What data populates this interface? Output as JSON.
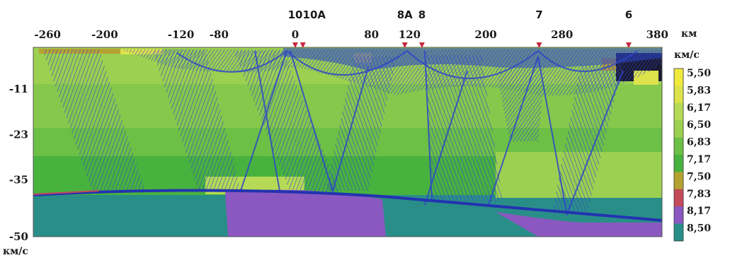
{
  "chart_data": {
    "type": "heatmap",
    "title": "",
    "x_unit": "км",
    "y_unit": "км/с",
    "colorbar_unit": "км/с",
    "xlim": [
      -275,
      385
    ],
    "ylim": [
      -50,
      0
    ],
    "x_ticks": [
      {
        "label": "-260",
        "value": -260
      },
      {
        "label": "-200",
        "value": -200
      },
      {
        "label": "-120",
        "value": -120
      },
      {
        "label": "-80",
        "value": -80
      },
      {
        "label": "0",
        "value": 0
      },
      {
        "label": "80",
        "value": 80
      },
      {
        "label": "120",
        "value": 120
      },
      {
        "label": "200",
        "value": 200
      },
      {
        "label": "280",
        "value": 280
      },
      {
        "label": "380",
        "value": 380
      }
    ],
    "y_ticks": [
      {
        "label": "-11",
        "value": -11
      },
      {
        "label": "-23",
        "value": -23
      },
      {
        "label": "-35",
        "value": -35
      },
      {
        "label": "-50",
        "value": -50
      }
    ],
    "stations": [
      {
        "label": "10",
        "x": 0
      },
      {
        "label": "10A",
        "x": 8
      },
      {
        "label": "8A",
        "x": 115
      },
      {
        "label": "8",
        "x": 133
      },
      {
        "label": "7",
        "x": 256
      },
      {
        "label": "6",
        "x": 350
      }
    ],
    "colorbar": {
      "values": [
        "5,50",
        "5,83",
        "6,17",
        "6,50",
        "6,83",
        "7,17",
        "7,50",
        "7,83",
        "8,17",
        "8,50"
      ],
      "colors": [
        "#f0ea3c",
        "#dde24a",
        "#b6da55",
        "#9cd050",
        "#6cc045",
        "#48b23e",
        "#b5a233",
        "#c44a5a",
        "#8a58c0",
        "#2a8e88"
      ]
    },
    "colors": {
      "ray_blue": "#2d45c8",
      "moho_line": "#2233b0",
      "station_marker": "#c8283c"
    }
  }
}
